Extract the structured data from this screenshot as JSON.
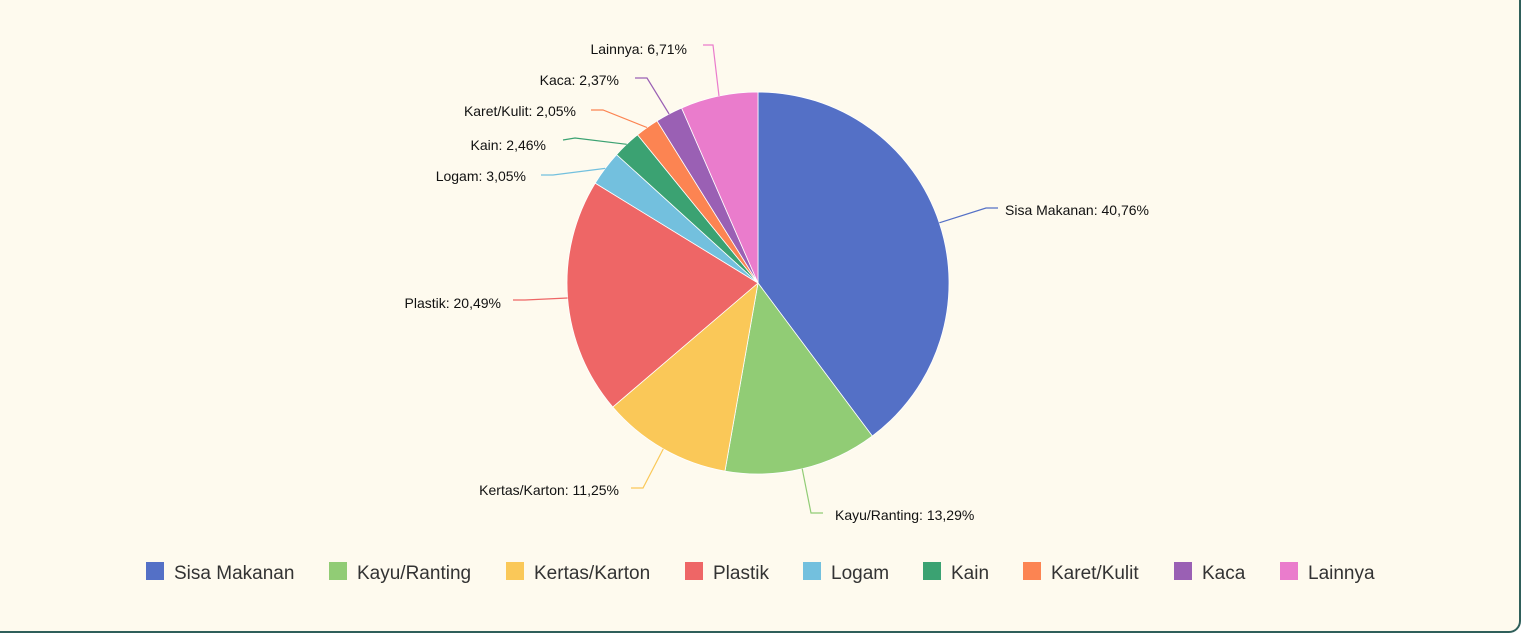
{
  "chart_data": {
    "type": "pie",
    "title": "",
    "slices": [
      {
        "name": "Sisa Makanan",
        "value": 40.76,
        "label": "Sisa Makanan: 40,76%",
        "color": "#5470c6"
      },
      {
        "name": "Kayu/Ranting",
        "value": 13.29,
        "label": "Kayu/Ranting: 13,29%",
        "color": "#91cc75"
      },
      {
        "name": "Kertas/Karton",
        "value": 11.25,
        "label": "Kertas/Karton: 11,25%",
        "color": "#fac858"
      },
      {
        "name": "Plastik",
        "value": 20.49,
        "label": "Plastik: 20,49%",
        "color": "#ee6666"
      },
      {
        "name": "Logam",
        "value": 3.05,
        "label": "Logam: 3,05%",
        "color": "#73c0de"
      },
      {
        "name": "Kain",
        "value": 2.46,
        "label": "Kain: 2,46%",
        "color": "#3ba272"
      },
      {
        "name": "Karet/Kulit",
        "value": 2.05,
        "label": "Karet/Kulit: 2,05%",
        "color": "#fc8452"
      },
      {
        "name": "Kaca",
        "value": 2.37,
        "label": "Kaca: 2,37%",
        "color": "#9a60b4"
      },
      {
        "name": "Lainnya",
        "value": 6.71,
        "label": "Lainnya: 6,71%",
        "color": "#ea7ccc"
      }
    ],
    "legend_position": "bottom",
    "start_angle": "top, clockwise"
  }
}
